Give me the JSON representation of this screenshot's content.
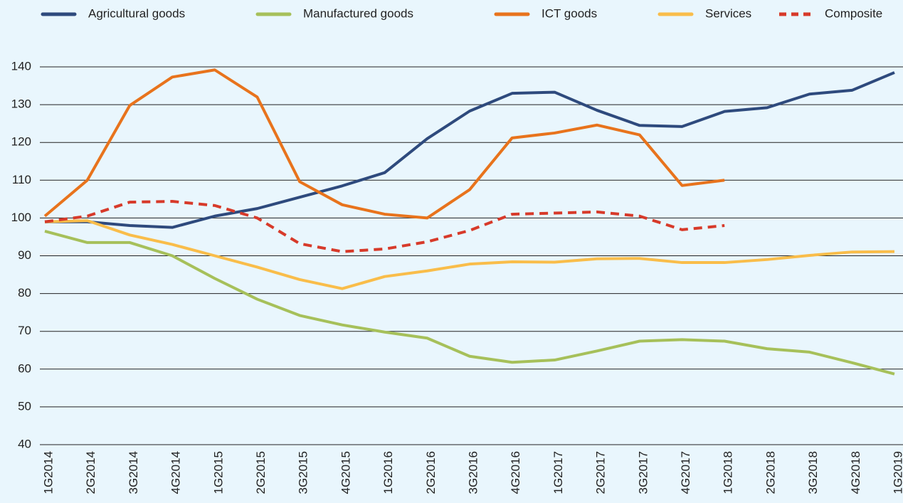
{
  "chart_data": {
    "type": "line",
    "categories": [
      "1G2014",
      "2G2014",
      "3G2014",
      "4G2014",
      "1G2015",
      "2G2015",
      "3G2015",
      "4G2015",
      "1G2016",
      "2G2016",
      "3G2016",
      "4G2016",
      "1G2017",
      "2G2017",
      "3G2017",
      "4G2017",
      "1G2018",
      "2G2018",
      "3G2018",
      "4G2018",
      "1G2019"
    ],
    "series": [
      {
        "name": "Agricultural goods",
        "color": "#2e4a7d",
        "line_style": "solid",
        "values": [
          99,
          99,
          98,
          97.5,
          100.5,
          102.5,
          105.5,
          108.5,
          112,
          121,
          128.3,
          133,
          133.3,
          128.5,
          124.5,
          124.2,
          128.2,
          129.2,
          132.8,
          133.8,
          138.5
        ]
      },
      {
        "name": "Manufactured goods",
        "color": "#a6c05a",
        "line_style": "solid",
        "values": [
          96.5,
          93.5,
          93.5,
          90,
          84,
          78.5,
          74.2,
          71.7,
          69.8,
          68.2,
          63.4,
          61.8,
          62.4,
          64.8,
          67.4,
          67.8,
          67.4,
          65.4,
          64.5,
          61.7,
          58.7
        ]
      },
      {
        "name": "ICT goods",
        "color": "#e8731c",
        "line_style": "solid",
        "values": [
          100.5,
          110,
          129.8,
          137.3,
          139.2,
          132,
          109.6,
          103.5,
          101,
          100,
          107.5,
          121.2,
          122.5,
          124.6,
          122,
          108.6,
          110,
          null,
          null,
          null,
          null
        ]
      },
      {
        "name": "Services",
        "color": "#f9bd4a",
        "line_style": "solid",
        "values": [
          99,
          99.3,
          95.5,
          93,
          90,
          87,
          83.7,
          81.3,
          84.5,
          86,
          87.8,
          88.4,
          88.3,
          89.2,
          89.3,
          88.2,
          88.2,
          89,
          90.1,
          91,
          91.1
        ]
      },
      {
        "name": "Composite",
        "color": "#d73a2a",
        "line_style": "dashed",
        "values": [
          99,
          100.5,
          104.2,
          104.4,
          103.3,
          100,
          93.2,
          91.1,
          91.8,
          93.7,
          96.7,
          101,
          101.3,
          101.6,
          100.5,
          96.9,
          98,
          null,
          null,
          null,
          null
        ]
      }
    ],
    "ylim": [
      40,
      140
    ],
    "yticks": [
      40,
      50,
      60,
      70,
      80,
      90,
      100,
      110,
      120,
      130,
      140
    ],
    "grid": true,
    "legend": "top"
  }
}
